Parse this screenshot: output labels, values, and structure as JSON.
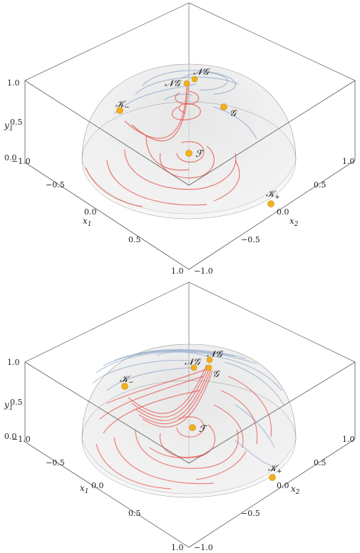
{
  "panels": [
    {
      "id": "top",
      "axes": {
        "x1": {
          "label": "x",
          "sub": "1",
          "ticks": [
            "−1.0",
            "−0.5",
            "0.0",
            "0.5",
            "1.0"
          ]
        },
        "x2": {
          "label": "x",
          "sub": "2",
          "ticks": [
            "−1.0",
            "−0.5",
            "0.0",
            "0.5",
            "1.0"
          ]
        },
        "y1": {
          "label": "y",
          "sub": "1",
          "ticks": [
            "0.0",
            "0.5",
            "1.0"
          ]
        }
      },
      "points": {
        "K_minus": {
          "label": "𝒦",
          "sub": "−"
        },
        "K_plus": {
          "label": "𝒦",
          "sub": "+"
        },
        "NG_a": {
          "label": "𝒩𝒢"
        },
        "NG_b": {
          "label": "𝒩𝒢"
        },
        "G": {
          "label": "𝒢"
        },
        "F": {
          "label": "ℱ"
        }
      }
    },
    {
      "id": "bottom",
      "axes": {
        "x1": {
          "label": "x",
          "sub": "1",
          "ticks": [
            "−1.0",
            "−0.5",
            "0.0",
            "0.5",
            "1.0"
          ]
        },
        "x2": {
          "label": "x",
          "sub": "2",
          "ticks": [
            "−1.0",
            "−0.5",
            "0.0",
            "0.5",
            "1.0"
          ]
        },
        "y1": {
          "label": "y",
          "sub": "1",
          "ticks": [
            "0.0",
            "0.5",
            "1.0"
          ]
        }
      },
      "points": {
        "K_minus": {
          "label": "𝒦",
          "sub": "−"
        },
        "K_plus": {
          "label": "𝒦",
          "sub": "+"
        },
        "NG_a": {
          "label": "𝒩𝒢"
        },
        "NG_b": {
          "label": "𝒩𝒢"
        },
        "G": {
          "label": "𝒢"
        },
        "F": {
          "label": "ℱ"
        }
      }
    }
  ],
  "colors": {
    "point_fill": "#f2b01e",
    "point_stroke": "#c98a00",
    "red_orbit": "#e8352e",
    "blue_orbit": "#8fa6c8",
    "dome_fill": "#d9d9d9",
    "box_line": "#555555"
  }
}
